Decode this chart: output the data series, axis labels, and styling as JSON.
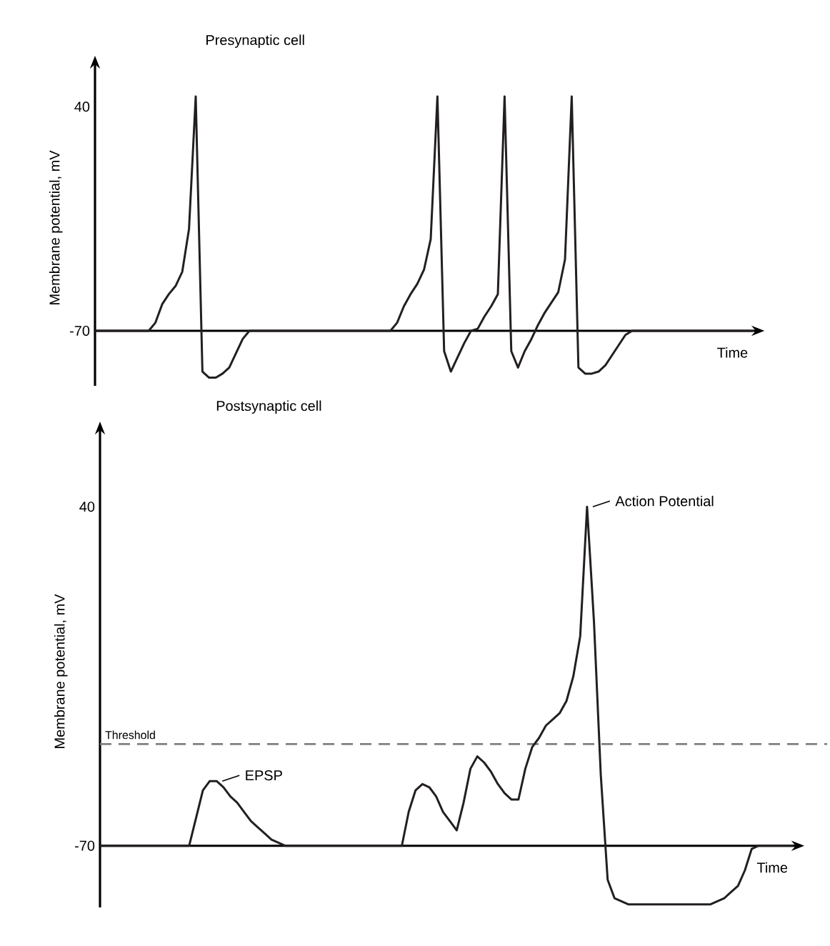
{
  "chart_data": [
    {
      "type": "line",
      "title": "Presynaptic cell",
      "xlabel": "Time",
      "ylabel": "Membrane potential, mV",
      "categories": [
        null,
        null,
        null,
        null,
        null,
        null,
        null,
        null,
        null,
        null,
        null,
        null,
        null,
        null,
        null,
        null,
        null,
        null,
        null,
        null,
        null,
        null,
        null,
        null,
        null,
        null,
        null,
        null,
        null,
        null,
        null,
        null,
        null,
        null,
        null,
        null,
        null,
        null,
        null,
        null,
        null,
        null,
        null,
        null,
        null,
        null,
        null,
        null,
        null,
        null,
        null,
        null,
        null,
        null,
        null,
        null,
        null,
        null,
        null,
        null,
        null,
        null,
        null,
        null,
        null,
        null,
        null,
        null,
        null,
        null,
        null,
        null,
        null,
        null,
        null,
        null,
        null,
        null,
        null,
        null,
        null,
        null,
        null,
        null,
        null,
        null,
        null,
        null,
        null,
        null,
        null,
        null,
        null,
        null,
        null,
        null,
        null,
        null,
        null
      ],
      "color": "#231f20",
      "values": [
        -70,
        -70,
        -70,
        -70,
        -70,
        -70,
        -70,
        -70,
        -70,
        -66,
        -57,
        -52,
        -48,
        -41,
        -20,
        45,
        -90,
        -93,
        -93,
        -91,
        -88,
        -81,
        -74,
        -70,
        -70,
        -70,
        -70,
        -70,
        -70,
        -70,
        -70,
        -70,
        -70,
        -70,
        -70,
        -70,
        -70,
        -70,
        -70,
        -70,
        -70,
        -70,
        -70,
        -70,
        -70,
        -66,
        -58,
        -52,
        -47,
        -40,
        -25,
        45,
        -80,
        -90,
        -83,
        -76,
        -70,
        -69,
        -63,
        -58,
        -52,
        45,
        -80,
        -88,
        -80,
        -74,
        -67,
        -61,
        -56,
        -51,
        -35,
        45,
        -88,
        -91,
        -91,
        -90,
        -87,
        -82,
        -77,
        -72,
        -70,
        -70,
        -70,
        -70,
        -70,
        -70,
        -70,
        -70,
        -70,
        -70,
        -70,
        -70,
        -70,
        -70,
        -70,
        -70,
        -70,
        -70,
        -70
      ],
      "ylim": [
        -97,
        58
      ],
      "yticks": [
        -70,
        40
      ],
      "tick_labels": "y"
    },
    {
      "type": "line",
      "title": "Postsynaptic cell",
      "xlabel": "Time",
      "ylabel": "Membrane potential, mV",
      "categories": [
        null,
        null,
        null,
        null,
        null,
        null,
        null,
        null,
        null,
        null,
        null,
        null,
        null,
        null,
        null,
        null,
        null,
        null,
        null,
        null,
        null,
        null,
        null,
        null,
        null,
        null,
        null,
        null,
        null,
        null,
        null,
        null,
        null,
        null,
        null,
        null,
        null,
        null,
        null,
        null,
        null,
        null,
        null,
        null,
        null,
        null,
        null,
        null,
        null,
        null,
        null,
        null,
        null,
        null,
        null,
        null,
        null,
        null,
        null,
        null,
        null,
        null,
        null,
        null,
        null,
        null,
        null,
        null,
        null,
        null,
        null,
        null,
        null,
        null,
        null,
        null,
        null,
        null,
        null,
        null,
        null,
        null,
        null,
        null,
        null,
        null,
        null,
        null,
        null,
        null,
        null,
        null,
        null,
        null,
        null,
        null,
        null,
        null,
        null,
        null,
        null,
        null
      ],
      "color": "#231f20",
      "values": [
        -70,
        -70,
        -70,
        -70,
        -70,
        -70,
        -70,
        -70,
        -70,
        -70,
        -70,
        -70,
        -70,
        -70,
        -61,
        -52,
        -49,
        -49,
        -51,
        -54,
        -56,
        -59,
        -62,
        -64,
        -66,
        -68,
        -69,
        -70,
        -70,
        -70,
        -70,
        -70,
        -70,
        -70,
        -70,
        -70,
        -70,
        -70,
        -70,
        -70,
        -70,
        -70,
        -70,
        -70,
        -70,
        -59,
        -52,
        -50,
        -51,
        -54,
        -59,
        -62,
        -65,
        -56,
        -45,
        -41,
        -43,
        -46,
        -50,
        -53,
        -55,
        -55,
        -45,
        -38,
        -35,
        -31,
        -29,
        -27,
        -23,
        -15,
        -2,
        40,
        3,
        -47,
        -81,
        -87,
        -88,
        -89,
        -89,
        -89,
        -89,
        -89,
        -89,
        -89,
        -89,
        -89,
        -89,
        -89,
        -89,
        -89,
        -88,
        -87,
        -85,
        -83,
        -78,
        -71,
        -70,
        -70,
        -70,
        -70,
        -70,
        -70
      ],
      "ylim": [
        -90,
        63
      ],
      "yticks": [
        -70,
        40
      ],
      "tick_labels": "y",
      "ref_lines": [
        {
          "axis": "y",
          "value": -37,
          "label": "Threshold",
          "color": "#808080",
          "line_style": "dashed"
        }
      ],
      "annotations": [
        "EPSP",
        "Action Potential"
      ]
    }
  ]
}
